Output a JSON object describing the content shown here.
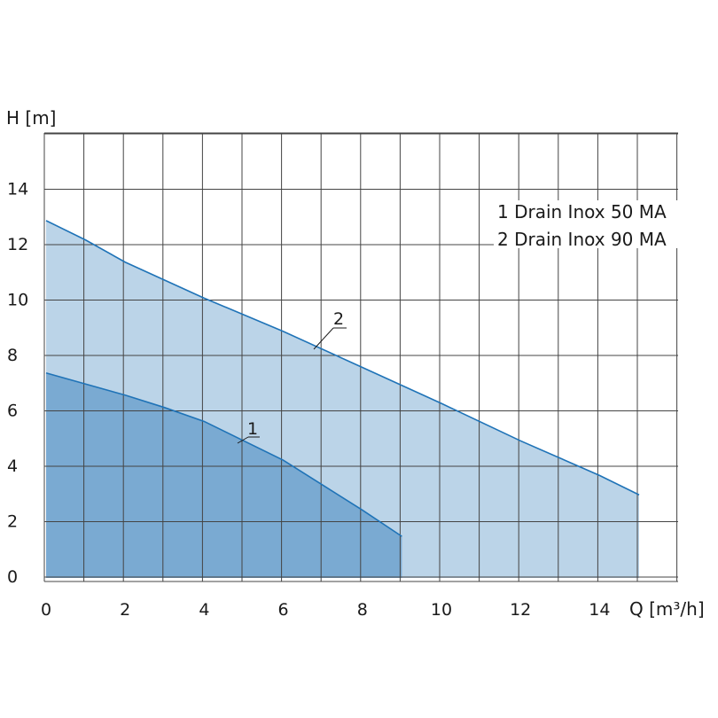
{
  "chart_data": {
    "type": "area",
    "xlabel": "Q [m³/h]",
    "ylabel": "H [m]",
    "xlim": [
      0,
      16
    ],
    "ylim": [
      0,
      16
    ],
    "x_ticks": [
      0,
      2,
      4,
      6,
      8,
      10,
      12,
      14
    ],
    "y_ticks": [
      0,
      2,
      4,
      6,
      8,
      10,
      12,
      14
    ],
    "grid": true,
    "legend_position": "top-right",
    "legend": [
      "1 Drain Inox 50 MA",
      "2 Drain Inox 90 MA"
    ],
    "series": [
      {
        "name": "Drain Inox 50 MA",
        "label": "1",
        "color": "#1f73b7",
        "fill": "#7aaad2",
        "x": [
          0,
          1,
          2,
          3,
          4,
          5,
          6,
          7,
          8,
          9
        ],
        "y": [
          7.4,
          7.0,
          6.6,
          6.15,
          5.65,
          4.95,
          4.25,
          3.35,
          2.45,
          1.5
        ]
      },
      {
        "name": "Drain Inox 90 MA",
        "label": "2",
        "color": "#1f73b7",
        "fill": "#bbd4e8",
        "x": [
          0,
          1,
          2,
          4,
          6,
          8,
          10,
          12,
          14,
          15
        ],
        "y": [
          12.9,
          12.2,
          11.4,
          10.1,
          8.9,
          7.6,
          6.3,
          4.95,
          3.7,
          3.0
        ]
      }
    ]
  }
}
